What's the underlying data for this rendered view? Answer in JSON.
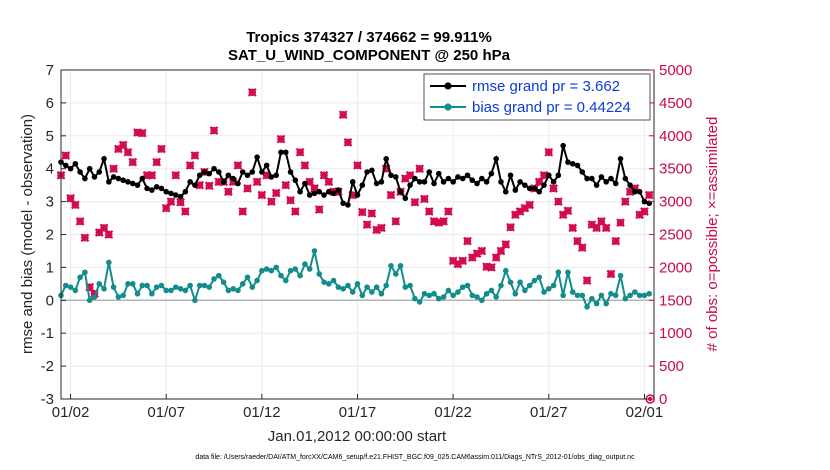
{
  "chart_data": {
    "type": "line",
    "title": [
      "Tropics 374327 / 374662 = 99.911%",
      "SAT_U_WIND_COMPONENT @ 250 hPa"
    ],
    "xlabel": "Jan.01,2012 00:00:00 start",
    "ylabel_left": "rmse and bias (model - observation)",
    "ylabel_right": "# of obs: o=possible; ×=assimilated",
    "xlim": [
      0.5,
      31.5
    ],
    "ylim_left": [
      -3,
      7
    ],
    "ylim_right": [
      0,
      5000
    ],
    "x_ticks": [
      {
        "x": 1,
        "label": "01/02"
      },
      {
        "x": 6,
        "label": "01/07"
      },
      {
        "x": 11,
        "label": "01/12"
      },
      {
        "x": 16,
        "label": "01/17"
      },
      {
        "x": 21,
        "label": "01/22"
      },
      {
        "x": 26,
        "label": "01/27"
      },
      {
        "x": 31,
        "label": "02/01"
      }
    ],
    "y_ticks_left": [
      "-3",
      "-2",
      "-1",
      "0",
      "1",
      "2",
      "3",
      "4",
      "5",
      "6",
      "7"
    ],
    "y_ticks_right": [
      "0",
      "500",
      "1000",
      "1500",
      "2000",
      "2500",
      "3000",
      "3500",
      "4000",
      "4500",
      "5000"
    ],
    "x": [
      0.5,
      0.75,
      1.0,
      1.25,
      1.5,
      1.75,
      2.0,
      2.25,
      2.5,
      2.75,
      3.0,
      3.25,
      3.5,
      3.75,
      4.0,
      4.25,
      4.5,
      4.75,
      5.0,
      5.25,
      5.5,
      5.75,
      6.0,
      6.25,
      6.5,
      6.75,
      7.0,
      7.25,
      7.5,
      7.75,
      8.0,
      8.25,
      8.5,
      8.75,
      9.0,
      9.25,
      9.5,
      9.75,
      10.0,
      10.25,
      10.5,
      10.75,
      11.0,
      11.25,
      11.5,
      11.75,
      12.0,
      12.25,
      12.5,
      12.75,
      13.0,
      13.25,
      13.5,
      13.75,
      14.0,
      14.25,
      14.5,
      14.75,
      15.0,
      15.25,
      15.5,
      15.75,
      16.0,
      16.25,
      16.5,
      16.75,
      17.0,
      17.25,
      17.5,
      17.75,
      18.0,
      18.25,
      18.5,
      18.75,
      19.0,
      19.25,
      19.5,
      19.75,
      20.0,
      20.25,
      20.5,
      20.75,
      21.0,
      21.25,
      21.5,
      21.75,
      22.0,
      22.25,
      22.5,
      22.75,
      23.0,
      23.25,
      23.5,
      23.75,
      24.0,
      24.25,
      24.5,
      24.75,
      25.0,
      25.25,
      25.5,
      25.75,
      26.0,
      26.25,
      26.5,
      26.75,
      27.0,
      27.25,
      27.5,
      27.75,
      28.0,
      28.25,
      28.5,
      28.75,
      29.0,
      29.25,
      29.5,
      29.75,
      30.0,
      30.25,
      30.5,
      30.75,
      31.0,
      31.25
    ],
    "series": [
      {
        "name": "rmse grand pr = 3.662",
        "axis": "left",
        "color": "#000000",
        "marker": "circle",
        "values": [
          4.2,
          4.1,
          4.0,
          4.15,
          3.9,
          3.7,
          4.0,
          3.75,
          3.9,
          4.3,
          3.6,
          3.75,
          3.7,
          3.65,
          3.6,
          3.55,
          3.5,
          3.7,
          3.4,
          3.35,
          3.45,
          3.4,
          3.3,
          3.25,
          3.2,
          3.15,
          3.3,
          3.6,
          3.5,
          3.8,
          3.9,
          3.85,
          4.0,
          3.9,
          3.6,
          3.8,
          3.7,
          3.55,
          3.9,
          3.8,
          3.9,
          4.35,
          3.9,
          4.1,
          3.75,
          3.8,
          4.5,
          4.5,
          3.9,
          3.65,
          3.3,
          3.55,
          3.2,
          3.25,
          3.3,
          3.2,
          3.3,
          3.25,
          3.35,
          2.95,
          2.9,
          3.6,
          3.2,
          3.5,
          3.9,
          3.95,
          3.55,
          3.6,
          4.3,
          3.8,
          3.75,
          3.3,
          3.1,
          3.5,
          3.7,
          3.6,
          3.6,
          3.9,
          3.55,
          3.85,
          3.6,
          3.7,
          3.6,
          3.75,
          3.7,
          3.8,
          3.65,
          3.55,
          3.7,
          3.6,
          3.85,
          4.3,
          3.6,
          3.3,
          3.8,
          3.35,
          3.6,
          3.5,
          3.4,
          3.4,
          3.3,
          3.5,
          3.8,
          3.6,
          3.8,
          4.7,
          4.2,
          4.15,
          4.1,
          3.9,
          3.7,
          3.7,
          3.5,
          3.75,
          3.6,
          3.7,
          3.55,
          4.3,
          3.7,
          3.5,
          3.3,
          3.3,
          3.0,
          2.95
        ]
      },
      {
        "name": "bias grand pr = 0.44224",
        "axis": "left",
        "color": "#138c8c",
        "marker": "circle",
        "values": [
          0.15,
          0.45,
          0.4,
          0.3,
          0.7,
          0.85,
          0.0,
          0.1,
          0.5,
          0.35,
          1.15,
          0.4,
          0.1,
          0.15,
          0.5,
          0.5,
          0.2,
          0.45,
          0.45,
          0.2,
          0.4,
          0.45,
          0.3,
          0.3,
          0.4,
          0.35,
          0.3,
          0.45,
          0.0,
          0.45,
          0.45,
          0.4,
          0.65,
          0.75,
          0.55,
          0.3,
          0.35,
          0.3,
          0.5,
          0.7,
          0.4,
          0.6,
          0.9,
          0.95,
          0.9,
          1.0,
          0.75,
          0.6,
          0.9,
          0.95,
          0.75,
          1.1,
          0.95,
          1.5,
          0.8,
          0.55,
          0.5,
          0.6,
          0.4,
          0.35,
          0.45,
          0.25,
          0.5,
          0.15,
          0.4,
          0.25,
          0.4,
          0.2,
          0.45,
          1.05,
          0.8,
          1.05,
          0.4,
          0.45,
          0.05,
          -0.05,
          0.2,
          0.15,
          0.2,
          0.05,
          0.1,
          0.3,
          0.15,
          0.25,
          0.4,
          0.45,
          0.15,
          0.1,
          0.0,
          0.2,
          0.3,
          0.1,
          0.45,
          0.9,
          0.55,
          0.2,
          0.55,
          0.3,
          0.45,
          0.6,
          0.7,
          0.25,
          0.35,
          0.45,
          0.85,
          0.15,
          0.85,
          0.25,
          0.15,
          0.15,
          -0.2,
          0.05,
          -0.1,
          0.15,
          -0.1,
          0.2,
          0.15,
          0.75,
          0.05,
          0.15,
          0.25,
          0.15,
          0.15,
          0.2
        ]
      },
      {
        "name": "# of obs assimilated",
        "axis": "right",
        "color": "#d20a50",
        "marker": "cross",
        "values": [
          3400,
          3700,
          3050,
          2950,
          2700,
          2450,
          1700,
          1600,
          2530,
          2600,
          2500,
          3500,
          3800,
          3860,
          3750,
          3600,
          4050,
          4040,
          3400,
          3400,
          3600,
          3800,
          2900,
          3000,
          3400,
          2990,
          2850,
          3550,
          3700,
          3250,
          3450,
          3240,
          4080,
          3300,
          3300,
          3150,
          3300,
          3550,
          2850,
          3200,
          4660,
          3300,
          3100,
          3400,
          3000,
          3130,
          3950,
          3250,
          3020,
          2850,
          3750,
          3550,
          3300,
          3200,
          2880,
          3400,
          3300,
          3150,
          3150,
          4320,
          3900,
          3100,
          3550,
          2840,
          2650,
          2820,
          2570,
          2600,
          3500,
          3100,
          2700,
          3150,
          3350,
          3400,
          2990,
          3500,
          3040,
          2850,
          2700,
          2680,
          2700,
          2850,
          2100,
          2050,
          2100,
          2400,
          2150,
          2210,
          2250,
          2010,
          2000,
          2150,
          2250,
          2350,
          2610,
          2800,
          2850,
          2900,
          2950,
          3200,
          3300,
          3400,
          3750,
          3200,
          3000,
          2800,
          2860,
          2600,
          2400,
          2300,
          1800,
          2650,
          2600,
          2700,
          2600,
          1900,
          2400,
          2680,
          3000,
          3150,
          3200,
          2800,
          2850,
          3100
        ]
      },
      {
        "name": "# of obs possible",
        "axis": "right",
        "color": "#d20a50",
        "marker": "circle",
        "values": [
          3400,
          3700,
          3050,
          2950,
          2700,
          2450,
          1700,
          1600,
          2530,
          2600,
          2500,
          3500,
          3800,
          3860,
          3750,
          3600,
          4050,
          4040,
          3400,
          3400,
          3600,
          3800,
          2900,
          3000,
          3400,
          2990,
          2850,
          3550,
          3700,
          3250,
          3450,
          3240,
          4080,
          3300,
          3300,
          3150,
          3300,
          3550,
          2850,
          3200,
          4660,
          3300,
          3100,
          3400,
          3000,
          3130,
          3950,
          3250,
          3020,
          2850,
          3750,
          3550,
          3300,
          3200,
          2880,
          3400,
          3300,
          3150,
          3150,
          4320,
          3900,
          3100,
          3550,
          2840,
          2650,
          2820,
          2570,
          2600,
          3500,
          3100,
          2700,
          3150,
          3350,
          3400,
          2990,
          3500,
          3040,
          2850,
          2700,
          2680,
          2700,
          2850,
          2100,
          2050,
          2100,
          2400,
          2150,
          2210,
          2250,
          2010,
          2000,
          2150,
          2250,
          2350,
          2610,
          2800,
          2850,
          2900,
          2950,
          3200,
          3300,
          3400,
          3750,
          3200,
          3000,
          2800,
          2860,
          2600,
          2400,
          2300,
          1800,
          2650,
          2600,
          2700,
          2600,
          1900,
          2400,
          2680,
          3000,
          3150,
          3200,
          2800,
          2850,
          3100
        ]
      }
    ],
    "reference_line_y": 0,
    "legend": {
      "entries": [
        "rmse grand pr = 3.662",
        "bias grand pr = 0.44224"
      ],
      "placement": "top-right"
    },
    "grid": true
  },
  "footnote": "data file: /Users/raeder/DAI/ATM_forcXX/CAM6_setup/f.e21.FHIST_BGC.f09_025.CAM6assim.011/Diags_NTrS_2012-01/obs_diag_output.nc",
  "colors": {
    "rmse": "#000000",
    "bias": "#138c8c",
    "obs": "#d20a50",
    "axis": "#262626",
    "grid": "#ebebeb",
    "zero_line": "#b4b4b4",
    "legend_text": "#0a3cdc"
  }
}
